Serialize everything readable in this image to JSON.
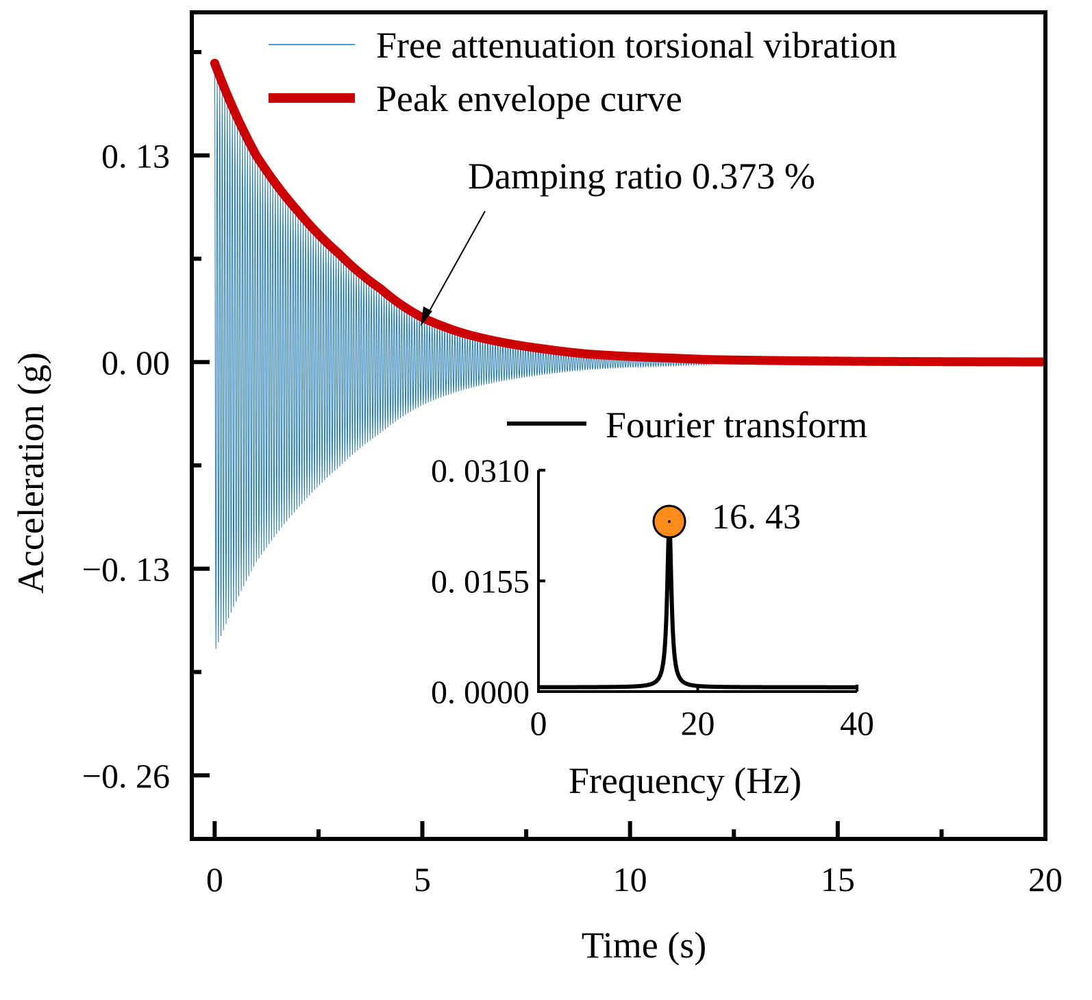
{
  "chart_data": [
    {
      "type": "line",
      "xlabel": "Time (s)",
      "ylabel": "Acceleration (g)",
      "xlim": [
        -0.55,
        20
      ],
      "ylim": [
        -0.3,
        0.22
      ],
      "x_ticks": [
        0,
        5,
        10,
        15,
        20
      ],
      "x_tick_labels": [
        "0",
        "5",
        "10",
        "15",
        "20"
      ],
      "x_minor_ticks": [
        2.5,
        7.5,
        12.5,
        17.5
      ],
      "y_ticks": [
        0.13,
        0.0,
        -0.13,
        -0.26
      ],
      "y_tick_labels": [
        "0. 13",
        "0. 00",
        "−0. 13",
        "−0. 26"
      ],
      "y_minor_ticks": [
        0.195,
        0.065,
        -0.065,
        -0.195
      ],
      "grid": false,
      "legend_position": "top",
      "series": [
        {
          "name": "Free attenuation torsional vibration",
          "kind": "damped-oscillation",
          "color": "#1f77b4",
          "time_start": 0.0,
          "time_end": 12.0,
          "frequency_hz": 16.43,
          "damping_ratio": 0.00373,
          "initial_amplitude": 0.185
        },
        {
          "name": "Peak envelope curve",
          "color": "#cc0000",
          "x": [
            0.0,
            1.0,
            2.0,
            3.0,
            4.0,
            5.0,
            6.0,
            7.0,
            8.0,
            9.0,
            10.0,
            11.0,
            12.0,
            14.0,
            16.0,
            18.0,
            20.0
          ],
          "y": [
            0.188,
            0.13,
            0.095,
            0.068,
            0.046,
            0.028,
            0.018,
            0.012,
            0.008,
            0.005,
            0.0035,
            0.0025,
            0.0015,
            0.0008,
            0.0004,
            0.0002,
            0.0001
          ]
        }
      ],
      "annotations": [
        {
          "text": "Damping ratio  0.373 %",
          "arrow_to": {
            "x": 5.1,
            "y": 0.03
          }
        }
      ]
    },
    {
      "type": "line",
      "role": "inset",
      "xlabel": "Frequency (Hz)",
      "ylabel": "",
      "xlim": [
        0,
        40
      ],
      "ylim": [
        0,
        0.031
      ],
      "x_ticks": [
        0,
        20,
        40
      ],
      "x_tick_labels": [
        "0",
        "20",
        "40"
      ],
      "y_ticks": [
        0.0,
        0.0155,
        0.031
      ],
      "y_tick_labels": [
        "0. 0000",
        "0. 0155",
        "0. 0310"
      ],
      "grid": false,
      "series": [
        {
          "name": "Fourier transform",
          "color": "#000000",
          "peak_frequency": 16.43,
          "peak_value": 0.0238,
          "baseline": 0.0006
        }
      ],
      "peak_marker": {
        "x": 16.43,
        "y": 0.0238,
        "label": "16. 43",
        "color": "#ff8c1a"
      }
    }
  ]
}
